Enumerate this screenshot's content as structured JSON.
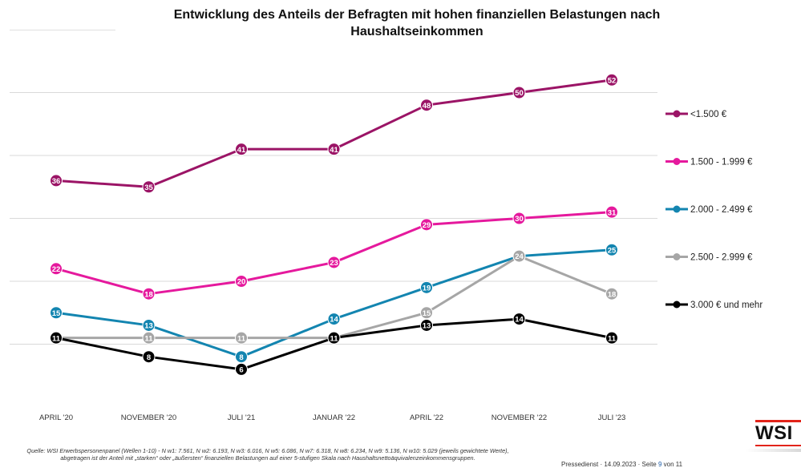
{
  "chart_data": {
    "type": "line",
    "title": "Entwicklung des Anteils der Befragten mit hohen finanziellen Belastungen nach Haushaltseinkommen",
    "categories": [
      "APRIL '20",
      "NOVEMBER '20",
      "JULI '21",
      "JANUAR '22",
      "APRIL '22",
      "NOVEMBER '22",
      "JULI '23"
    ],
    "series": [
      {
        "name": "<1.500 €",
        "color": "#9b1466",
        "values": [
          36,
          35,
          41,
          41,
          48,
          50,
          52
        ]
      },
      {
        "name": "1.500 - 1.999 €",
        "color": "#e5199d",
        "values": [
          22,
          18,
          20,
          23,
          29,
          30,
          31
        ]
      },
      {
        "name": "2.000 - 2.499 €",
        "color": "#1385b0",
        "values": [
          15,
          13,
          8,
          14,
          19,
          24,
          25
        ]
      },
      {
        "name": "2.500 - 2.999 €",
        "color": "#a6a6a6",
        "values": [
          11,
          11,
          11,
          11,
          15,
          24,
          18
        ]
      },
      {
        "name": "3.000 € und mehr",
        "color": "#000000",
        "values": [
          11,
          8,
          6,
          11,
          13,
          14,
          11
        ]
      }
    ],
    "ylim": [
      0,
      60
    ],
    "grid": "horizontal",
    "legend_position": "right"
  },
  "footer": {
    "source": "Quelle: WSI Erwerbspersonenpanel (Wellen 1-10) - N w1: 7.561, N w2: 6.193, N w3: 6.016, N w5: 6.086, N w7: 6.318, N w8: 6.234, N w9: 5.136, N w10: 5.029 (jeweils gewichtete Werte), abgetragen ist der Anteil mit „starken“ oder „äußersten“ finanziellen Belastungen auf einer 5-stufigen Skala nach Haushaltsnettoäquivalenzeinkommensgruppen.",
    "press_prefix": "Pressedienst · 14.09.2023 · Seite",
    "page_number": "9",
    "page_suffix": "von 11"
  },
  "logo": {
    "text": "WSI"
  }
}
